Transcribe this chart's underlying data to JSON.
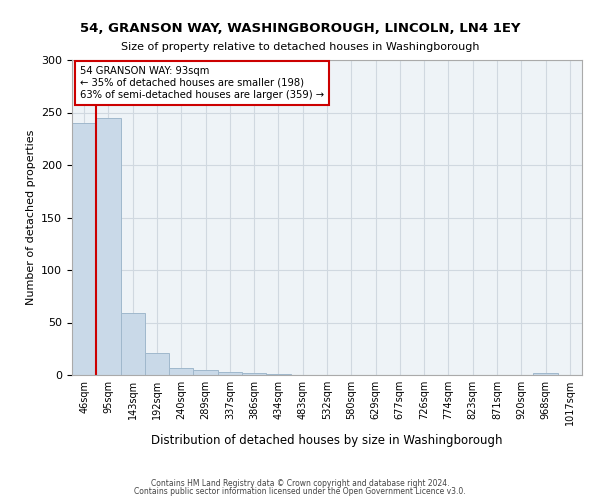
{
  "title": "54, GRANSON WAY, WASHINGBOROUGH, LINCOLN, LN4 1EY",
  "subtitle": "Size of property relative to detached houses in Washingborough",
  "xlabel": "Distribution of detached houses by size in Washingborough",
  "ylabel": "Number of detached properties",
  "bin_labels": [
    "46sqm",
    "95sqm",
    "143sqm",
    "192sqm",
    "240sqm",
    "289sqm",
    "337sqm",
    "386sqm",
    "434sqm",
    "483sqm",
    "532sqm",
    "580sqm",
    "629sqm",
    "677sqm",
    "726sqm",
    "774sqm",
    "823sqm",
    "871sqm",
    "920sqm",
    "968sqm",
    "1017sqm"
  ],
  "bar_heights": [
    240,
    245,
    59,
    21,
    7,
    5,
    3,
    2,
    1,
    0,
    0,
    0,
    0,
    0,
    0,
    0,
    0,
    0,
    0,
    2,
    0
  ],
  "bar_color": "#c9d9e8",
  "bar_edge_color": "#a0b8cc",
  "property_size_bin_index": 1,
  "annotation_title": "54 GRANSON WAY: 93sqm",
  "annotation_line1": "← 35% of detached houses are smaller (198)",
  "annotation_line2": "63% of semi-detached houses are larger (359) →",
  "red_line_color": "#cc0000",
  "annotation_box_color": "#ffffff",
  "annotation_box_edge": "#cc0000",
  "ylim": [
    0,
    300
  ],
  "yticks": [
    0,
    50,
    100,
    150,
    200,
    250,
    300
  ],
  "grid_color": "#d0d8e0",
  "background_color": "#eef3f7",
  "footer_line1": "Contains HM Land Registry data © Crown copyright and database right 2024.",
  "footer_line2": "Contains public sector information licensed under the Open Government Licence v3.0."
}
